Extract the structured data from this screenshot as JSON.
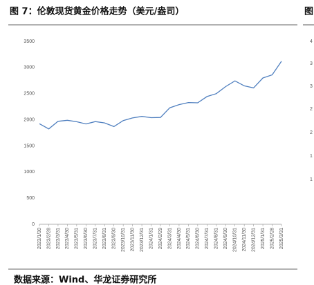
{
  "chart_data": {
    "type": "line",
    "title": "图 7：伦敦现货黄金价格走势（美元/盎司）",
    "source": "数据来源：Wind、华龙证券研究所",
    "next_figure_fragment": "图",
    "next_figure_partial_ticks": [
      "4",
      "3",
      "3",
      "2",
      "2",
      "1",
      "1"
    ],
    "categories": [
      "2023/1/30",
      "2023/2/28",
      "2023/3/31",
      "2023/4/30",
      "2023/5/31",
      "2023/6/30",
      "2023/7/31",
      "2023/8/31",
      "2023/9/30",
      "2023/10/31",
      "2023/11/30",
      "2023/12/31",
      "2024/1/31",
      "2024/2/29",
      "2024/3/31",
      "2024/4/30",
      "2024/5/31",
      "2024/6/30",
      "2024/7/31",
      "2024/8/31",
      "2024/9/30",
      "2024/10/31",
      "2024/11/30",
      "2024/12/31",
      "2025/1/31",
      "2025/2/28",
      "2025/3/31"
    ],
    "values": [
      1925,
      1825,
      1970,
      1990,
      1962,
      1920,
      1965,
      1940,
      1870,
      1985,
      2035,
      2065,
      2040,
      2045,
      2230,
      2290,
      2330,
      2325,
      2445,
      2500,
      2635,
      2745,
      2650,
      2610,
      2800,
      2860,
      3120
    ],
    "color": "#4f7fbf",
    "ylim": [
      0,
      3500
    ],
    "yticks": [
      0,
      500,
      1000,
      1500,
      2000,
      2500,
      3000,
      3500
    ],
    "grid": false
  }
}
